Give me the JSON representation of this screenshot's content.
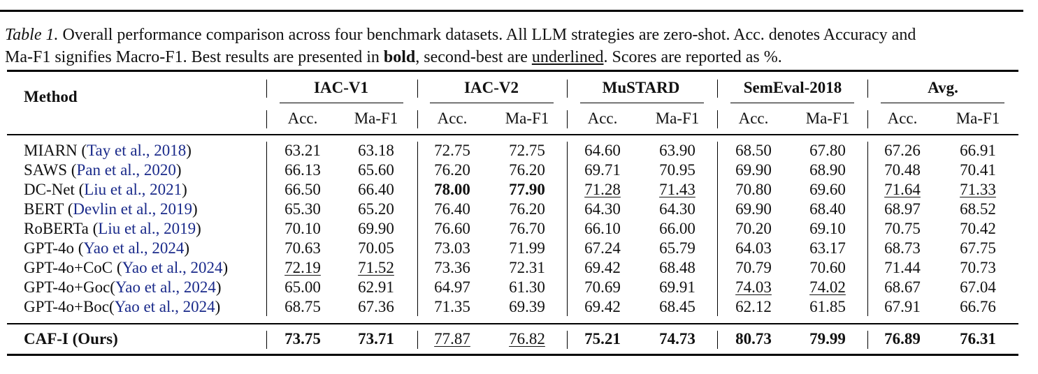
{
  "caption": {
    "label": "Table 1.",
    "line1_rest": " Overall performance comparison across four benchmark datasets. All LLM strategies are zero-shot. Acc. denotes Accuracy and",
    "line2_a": "Ma-F1 signifies Macro-F1. Best results are presented in ",
    "bold_word": "bold",
    "line2_b": ", second-best are ",
    "underlined_word": "underlined",
    "line2_c": ". Scores are reported as %."
  },
  "table": {
    "method_header": "Method",
    "groups": [
      "IAC-V1",
      "IAC-V2",
      "MuSTARD",
      "SemEval-2018",
      "Avg."
    ],
    "subheaders": [
      "Acc.",
      "Ma-F1",
      "Acc.",
      "Ma-F1",
      "Acc.",
      "Ma-F1",
      "Acc.",
      "Ma-F1",
      "Acc.",
      "Ma-F1"
    ],
    "rows": [
      {
        "name": "MIARN (",
        "cite": "Tay et al., 2018",
        "close": ")",
        "values": [
          "63.21",
          "63.18",
          "72.75",
          "72.75",
          "64.60",
          "63.90",
          "68.50",
          "67.80",
          "67.26",
          "66.91"
        ],
        "style": [
          "",
          "",
          "",
          "",
          "",
          "",
          "",
          "",
          "",
          ""
        ]
      },
      {
        "name": "SAWS (",
        "cite": "Pan et al., 2020",
        "close": ")",
        "values": [
          "66.13",
          "65.60",
          "76.20",
          "76.20",
          "69.71",
          "70.95",
          "69.90",
          "68.90",
          "70.48",
          "70.41"
        ],
        "style": [
          "",
          "",
          "",
          "",
          "",
          "",
          "",
          "",
          "",
          ""
        ]
      },
      {
        "name": "DC-Net (",
        "cite": "Liu et al., 2021",
        "close": ")",
        "values": [
          "66.50",
          "66.40",
          "78.00",
          "77.90",
          "71.28",
          "71.43",
          "70.80",
          "69.60",
          "71.64",
          "71.33"
        ],
        "style": [
          "",
          "",
          "bold",
          "bold",
          "ul",
          "ul",
          "",
          "",
          "ul",
          "ul"
        ]
      },
      {
        "name": "BERT (",
        "cite": "Devlin et al., 2019",
        "close": ")",
        "values": [
          "65.30",
          "65.20",
          "76.40",
          "76.20",
          "64.30",
          "64.30",
          "69.90",
          "68.40",
          "68.97",
          "68.52"
        ],
        "style": [
          "",
          "",
          "",
          "",
          "",
          "",
          "",
          "",
          "",
          ""
        ]
      },
      {
        "name": "RoBERTa (",
        "cite": "Liu et al., 2019",
        "close": ")",
        "values": [
          "70.10",
          "69.90",
          "76.60",
          "76.70",
          "66.10",
          "66.00",
          "70.20",
          "69.10",
          "70.75",
          "70.42"
        ],
        "style": [
          "",
          "",
          "",
          "",
          "",
          "",
          "",
          "",
          "",
          ""
        ]
      },
      {
        "name": "GPT-4o (",
        "cite": "Yao et al., 2024",
        "close": ")",
        "values": [
          "70.63",
          "70.05",
          "73.03",
          "71.99",
          "67.24",
          "65.79",
          "64.03",
          "63.17",
          "68.73",
          "67.75"
        ],
        "style": [
          "",
          "",
          "",
          "",
          "",
          "",
          "",
          "",
          "",
          ""
        ]
      },
      {
        "name": "GPT-4o+CoC (",
        "cite": "Yao et al., 2024",
        "close": ")",
        "values": [
          "72.19",
          "71.52",
          "73.36",
          "72.31",
          "69.42",
          "68.48",
          "70.79",
          "70.60",
          "71.44",
          "70.73"
        ],
        "style": [
          "ul",
          "ul",
          "",
          "",
          "",
          "",
          "",
          "",
          "",
          ""
        ]
      },
      {
        "name": "GPT-4o+Goc(",
        "cite": "Yao et al., 2024",
        "close": ")",
        "values": [
          "65.00",
          "62.91",
          "64.97",
          "61.30",
          "70.69",
          "69.91",
          "74.03",
          "74.02",
          "68.67",
          "67.04"
        ],
        "style": [
          "",
          "",
          "",
          "",
          "",
          "",
          "ul",
          "ul",
          "",
          ""
        ]
      },
      {
        "name": "GPT-4o+Boc(",
        "cite": "Yao et al., 2024",
        "close": ")",
        "values": [
          "68.75",
          "67.36",
          "71.35",
          "69.39",
          "69.42",
          "68.45",
          "62.12",
          "61.85",
          "67.91",
          "66.76"
        ],
        "style": [
          "",
          "",
          "",
          "",
          "",
          "",
          "",
          "",
          "",
          ""
        ]
      }
    ],
    "ours": {
      "name": "CAF-I (Ours)",
      "values": [
        "73.75",
        "73.71",
        "77.87",
        "76.82",
        "75.21",
        "74.73",
        "80.73",
        "79.99",
        "76.89",
        "76.31"
      ],
      "style": [
        "bold",
        "bold",
        "ul",
        "ul",
        "bold",
        "bold",
        "bold",
        "bold",
        "bold",
        "bold"
      ]
    }
  }
}
